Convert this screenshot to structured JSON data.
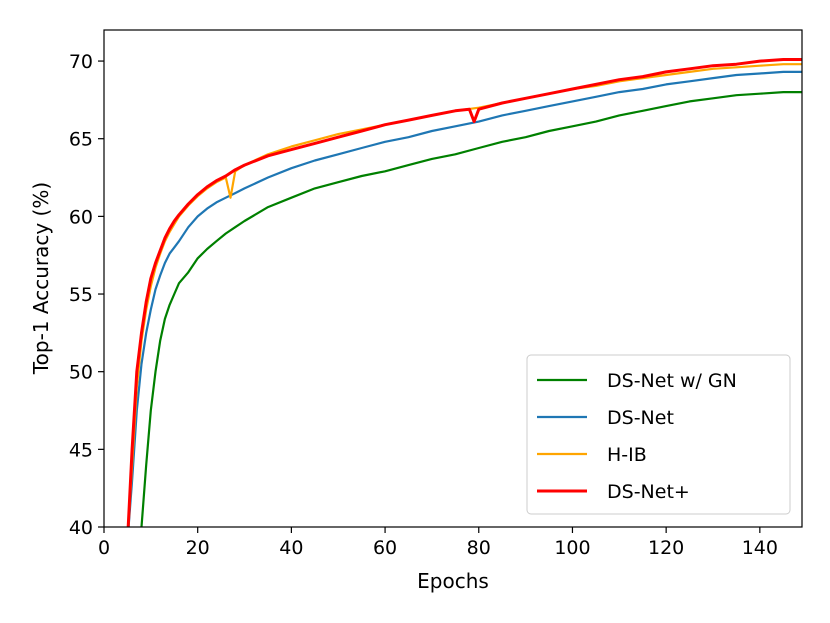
{
  "chart_data": {
    "type": "line",
    "title": "",
    "xlabel": "Epochs",
    "ylabel": "Top-1 Accuracy (%)",
    "xlim": [
      0,
      149
    ],
    "ylim": [
      40,
      72
    ],
    "xticks": [
      0,
      20,
      40,
      60,
      80,
      100,
      120,
      140
    ],
    "yticks": [
      40,
      45,
      50,
      55,
      60,
      65,
      70
    ],
    "grid": false,
    "legend_position": "lower-right",
    "series": [
      {
        "name": "DS-Net w/ GN",
        "color": "#008000",
        "points": [
          [
            7,
            38
          ],
          [
            8,
            40
          ],
          [
            9,
            44
          ],
          [
            10,
            47.5
          ],
          [
            11,
            50
          ],
          [
            12,
            52
          ],
          [
            13,
            53.4
          ],
          [
            14,
            54.3
          ],
          [
            15,
            55
          ],
          [
            16,
            55.7
          ],
          [
            18,
            56.4
          ],
          [
            20,
            57.3
          ],
          [
            22,
            57.9
          ],
          [
            24,
            58.4
          ],
          [
            26,
            58.9
          ],
          [
            28,
            59.3
          ],
          [
            30,
            59.7
          ],
          [
            35,
            60.6
          ],
          [
            40,
            61.2
          ],
          [
            45,
            61.8
          ],
          [
            50,
            62.2
          ],
          [
            55,
            62.6
          ],
          [
            60,
            62.9
          ],
          [
            65,
            63.3
          ],
          [
            70,
            63.7
          ],
          [
            75,
            64.0
          ],
          [
            80,
            64.4
          ],
          [
            85,
            64.8
          ],
          [
            90,
            65.1
          ],
          [
            95,
            65.5
          ],
          [
            100,
            65.8
          ],
          [
            105,
            66.1
          ],
          [
            110,
            66.5
          ],
          [
            115,
            66.8
          ],
          [
            120,
            67.1
          ],
          [
            125,
            67.4
          ],
          [
            130,
            67.6
          ],
          [
            135,
            67.8
          ],
          [
            140,
            67.9
          ],
          [
            145,
            68.0
          ],
          [
            149,
            68.0
          ]
        ]
      },
      {
        "name": "DS-Net",
        "color": "#1f77b4",
        "points": [
          [
            5,
            39
          ],
          [
            6,
            43
          ],
          [
            7,
            47.5
          ],
          [
            8,
            50.5
          ],
          [
            9,
            52.5
          ],
          [
            10,
            54
          ],
          [
            11,
            55.3
          ],
          [
            12,
            56.2
          ],
          [
            13,
            57
          ],
          [
            14,
            57.6
          ],
          [
            15,
            58
          ],
          [
            16,
            58.4
          ],
          [
            18,
            59.3
          ],
          [
            20,
            60
          ],
          [
            22,
            60.5
          ],
          [
            24,
            60.9
          ],
          [
            26,
            61.2
          ],
          [
            28,
            61.5
          ],
          [
            30,
            61.8
          ],
          [
            35,
            62.5
          ],
          [
            40,
            63.1
          ],
          [
            45,
            63.6
          ],
          [
            50,
            64.0
          ],
          [
            55,
            64.4
          ],
          [
            60,
            64.8
          ],
          [
            65,
            65.1
          ],
          [
            70,
            65.5
          ],
          [
            75,
            65.8
          ],
          [
            80,
            66.1
          ],
          [
            85,
            66.5
          ],
          [
            90,
            66.8
          ],
          [
            95,
            67.1
          ],
          [
            100,
            67.4
          ],
          [
            105,
            67.7
          ],
          [
            110,
            68.0
          ],
          [
            115,
            68.2
          ],
          [
            120,
            68.5
          ],
          [
            125,
            68.7
          ],
          [
            130,
            68.9
          ],
          [
            135,
            69.1
          ],
          [
            140,
            69.2
          ],
          [
            145,
            69.3
          ],
          [
            149,
            69.3
          ]
        ]
      },
      {
        "name": "H-IB",
        "color": "#ffa500",
        "points": [
          [
            5,
            39
          ],
          [
            6,
            44
          ],
          [
            7,
            49
          ],
          [
            8,
            52
          ],
          [
            9,
            54
          ],
          [
            10,
            55.5
          ],
          [
            11,
            56.7
          ],
          [
            12,
            57.6
          ],
          [
            13,
            58.4
          ],
          [
            14,
            59
          ],
          [
            15,
            59.5
          ],
          [
            16,
            60
          ],
          [
            18,
            60.7
          ],
          [
            20,
            61.3
          ],
          [
            22,
            61.8
          ],
          [
            24,
            62.2
          ],
          [
            26,
            62.5
          ],
          [
            27,
            61.2
          ],
          [
            28,
            62.9
          ],
          [
            30,
            63.3
          ],
          [
            35,
            64.0
          ],
          [
            40,
            64.5
          ],
          [
            45,
            64.9
          ],
          [
            50,
            65.3
          ],
          [
            55,
            65.6
          ],
          [
            60,
            65.9
          ],
          [
            65,
            66.2
          ],
          [
            70,
            66.5
          ],
          [
            75,
            66.8
          ],
          [
            80,
            67.0
          ],
          [
            85,
            67.3
          ],
          [
            90,
            67.6
          ],
          [
            95,
            67.9
          ],
          [
            100,
            68.2
          ],
          [
            105,
            68.4
          ],
          [
            110,
            68.7
          ],
          [
            115,
            68.9
          ],
          [
            120,
            69.1
          ],
          [
            125,
            69.3
          ],
          [
            130,
            69.5
          ],
          [
            135,
            69.6
          ],
          [
            140,
            69.7
          ],
          [
            145,
            69.8
          ],
          [
            149,
            69.8
          ]
        ]
      },
      {
        "name": "DS-Net+",
        "color": "#ff0000",
        "points": [
          [
            5,
            39
          ],
          [
            6,
            45
          ],
          [
            7,
            50
          ],
          [
            8,
            52.5
          ],
          [
            9,
            54.5
          ],
          [
            10,
            56
          ],
          [
            11,
            57
          ],
          [
            12,
            57.8
          ],
          [
            13,
            58.6
          ],
          [
            14,
            59.2
          ],
          [
            15,
            59.7
          ],
          [
            16,
            60.1
          ],
          [
            18,
            60.8
          ],
          [
            20,
            61.4
          ],
          [
            22,
            61.9
          ],
          [
            24,
            62.3
          ],
          [
            26,
            62.6
          ],
          [
            28,
            63.0
          ],
          [
            30,
            63.3
          ],
          [
            35,
            63.9
          ],
          [
            40,
            64.3
          ],
          [
            45,
            64.7
          ],
          [
            50,
            65.1
          ],
          [
            55,
            65.5
          ],
          [
            60,
            65.9
          ],
          [
            65,
            66.2
          ],
          [
            70,
            66.5
          ],
          [
            75,
            66.8
          ],
          [
            78,
            66.9
          ],
          [
            79,
            66.1
          ],
          [
            80,
            66.9
          ],
          [
            85,
            67.3
          ],
          [
            90,
            67.6
          ],
          [
            95,
            67.9
          ],
          [
            100,
            68.2
          ],
          [
            105,
            68.5
          ],
          [
            110,
            68.8
          ],
          [
            115,
            69.0
          ],
          [
            120,
            69.3
          ],
          [
            125,
            69.5
          ],
          [
            130,
            69.7
          ],
          [
            135,
            69.8
          ],
          [
            140,
            70.0
          ],
          [
            145,
            70.1
          ],
          [
            149,
            70.1
          ]
        ]
      }
    ]
  }
}
